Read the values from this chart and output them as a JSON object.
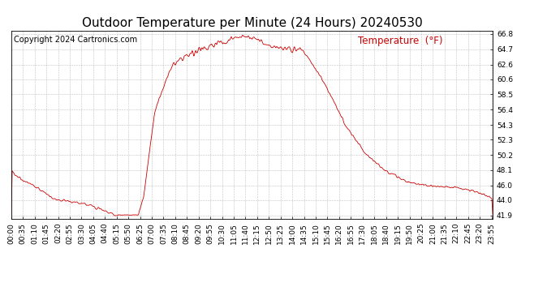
{
  "title": "Outdoor Temperature per Minute (24 Hours) 20240530",
  "copyright_text": "Copyright 2024 Cartronics.com",
  "legend_text": "Temperature  (°F)",
  "line_color": "#cc0000",
  "background_color": "#ffffff",
  "grid_color": "#bbbbbb",
  "text_color_red": "#cc0000",
  "text_color_black": "#000000",
  "ylim_min": 41.9,
  "ylim_max": 66.8,
  "yticks": [
    41.9,
    44.0,
    46.0,
    48.1,
    50.2,
    52.3,
    54.3,
    56.4,
    58.5,
    60.6,
    62.6,
    64.7,
    66.8
  ],
  "xtick_labels": [
    "00:00",
    "00:35",
    "01:10",
    "01:45",
    "02:20",
    "02:55",
    "03:30",
    "04:05",
    "04:40",
    "05:15",
    "05:50",
    "06:25",
    "07:00",
    "07:35",
    "08:10",
    "08:45",
    "09:20",
    "09:55",
    "10:30",
    "11:05",
    "11:40",
    "12:15",
    "12:50",
    "13:25",
    "14:00",
    "14:35",
    "15:10",
    "15:45",
    "16:20",
    "16:55",
    "17:30",
    "18:05",
    "18:40",
    "19:15",
    "19:50",
    "20:25",
    "21:00",
    "21:35",
    "22:10",
    "22:45",
    "23:20",
    "23:55"
  ],
  "title_fontsize": 11,
  "copyright_fontsize": 7,
  "legend_fontsize": 8.5,
  "tick_fontsize": 6.5,
  "figwidth": 6.9,
  "figheight": 3.75,
  "dpi": 100
}
